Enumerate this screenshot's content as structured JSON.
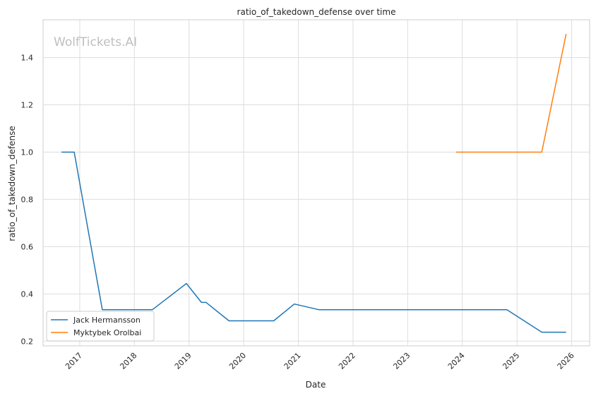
{
  "chart_data": {
    "type": "line",
    "title": "ratio_of_takedown_defense over time",
    "xlabel": "Date",
    "ylabel": "ratio_of_takedown_defense",
    "watermark": "WolfTickets.AI",
    "xlim": [
      "2016-05-01",
      "2026-05-01"
    ],
    "ylim": [
      0.18,
      1.56
    ],
    "x_ticks": [
      "2017",
      "2018",
      "2019",
      "2020",
      "2021",
      "2022",
      "2023",
      "2024",
      "2025",
      "2026"
    ],
    "y_ticks": [
      "0.2",
      "0.4",
      "0.6",
      "0.8",
      "1.0",
      "1.2",
      "1.4"
    ],
    "grid": true,
    "legend_position": "lower-left",
    "series": [
      {
        "name": "Jack Hermansson",
        "color": "#1f77b4",
        "points": [
          {
            "x": "2016-09-01",
            "y": 1.0
          },
          {
            "x": "2016-11-25",
            "y": 1.0
          },
          {
            "x": "2017-06-01",
            "y": 0.333
          },
          {
            "x": "2018-05-01",
            "y": 0.333
          },
          {
            "x": "2018-12-15",
            "y": 0.444
          },
          {
            "x": "2019-03-25",
            "y": 0.364
          },
          {
            "x": "2019-04-25",
            "y": 0.364
          },
          {
            "x": "2019-09-25",
            "y": 0.286
          },
          {
            "x": "2020-07-20",
            "y": 0.286
          },
          {
            "x": "2020-12-05",
            "y": 0.357
          },
          {
            "x": "2021-05-20",
            "y": 0.333
          },
          {
            "x": "2024-10-25",
            "y": 0.333
          },
          {
            "x": "2025-06-15",
            "y": 0.238
          },
          {
            "x": "2025-11-25",
            "y": 0.238
          }
        ]
      },
      {
        "name": "Myktybek Orolbai",
        "color": "#ff7f0e",
        "points": [
          {
            "x": "2023-11-20",
            "y": 1.0
          },
          {
            "x": "2025-06-15",
            "y": 1.0
          },
          {
            "x": "2025-11-25",
            "y": 1.5
          }
        ]
      }
    ]
  }
}
